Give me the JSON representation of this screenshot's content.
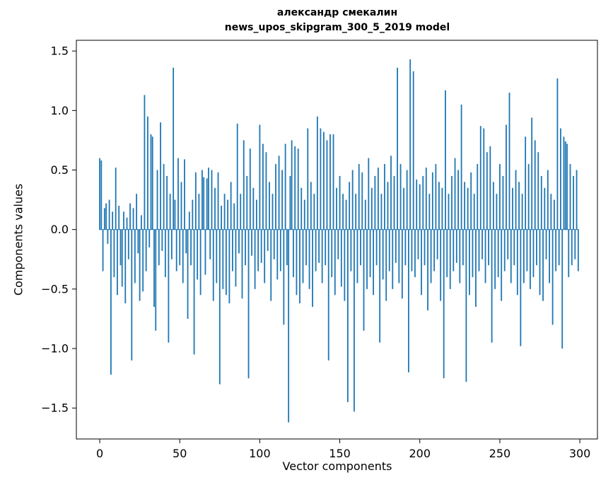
{
  "title_lines": {
    "line1": "александр смекалин",
    "line2": "news_upos_skipgram_300_5_2019 model"
  },
  "chart_data": {
    "type": "bar",
    "title": "александр смекалин\nnews_upos_skipgram_300_5_2019 model",
    "xlabel": "Vector components",
    "ylabel": "Components values",
    "xlim": [
      -14.6,
      311.0
    ],
    "ylim": [
      -1.76,
      1.59
    ],
    "xticks": [
      0,
      50,
      100,
      150,
      200,
      250,
      300
    ],
    "yticks": [
      -1.5,
      -1.0,
      -0.5,
      0.0,
      0.5,
      1.0,
      1.5
    ],
    "bar_color": "#1f77b4",
    "bar_width": 0.8,
    "grid": false,
    "legend": "none",
    "values": [
      0.6,
      0.58,
      -0.35,
      0.18,
      0.22,
      -0.12,
      0.25,
      -1.22,
      0.15,
      -0.4,
      0.52,
      -0.55,
      0.2,
      -0.3,
      -0.48,
      0.15,
      -0.62,
      0.1,
      -0.25,
      0.22,
      -1.1,
      0.18,
      -0.45,
      0.3,
      -0.2,
      -0.6,
      0.12,
      -0.52,
      1.13,
      -0.35,
      0.95,
      -0.15,
      0.8,
      0.78,
      -0.65,
      -0.85,
      0.5,
      -0.3,
      0.9,
      -0.18,
      0.55,
      -0.4,
      0.45,
      -0.95,
      0.3,
      -0.25,
      1.36,
      0.25,
      -0.35,
      0.6,
      -0.3,
      0.4,
      -0.45,
      0.59,
      -0.2,
      -0.75,
      0.15,
      -0.3,
      0.25,
      -1.05,
      0.48,
      -0.42,
      0.3,
      -0.55,
      0.5,
      0.44,
      -0.38,
      0.43,
      0.52,
      -0.25,
      0.5,
      -0.6,
      0.35,
      -0.45,
      0.48,
      -1.3,
      0.2,
      -0.5,
      0.3,
      -0.55,
      0.25,
      -0.62,
      0.4,
      -0.35,
      0.22,
      -0.48,
      0.89,
      -0.2,
      0.3,
      -0.58,
      0.75,
      -0.3,
      0.45,
      -1.25,
      0.68,
      -0.22,
      0.35,
      -0.5,
      0.25,
      -0.35,
      0.88,
      -0.28,
      0.72,
      -0.45,
      0.65,
      -0.18,
      0.4,
      -0.6,
      0.3,
      -0.25,
      0.55,
      -0.42,
      0.62,
      -0.35,
      0.5,
      -0.8,
      0.72,
      -0.3,
      -1.62,
      0.45,
      0.75,
      -0.4,
      0.7,
      -0.55,
      0.68,
      -0.62,
      0.35,
      -0.45,
      0.25,
      -0.3,
      0.85,
      -0.5,
      0.4,
      -0.65,
      0.3,
      -0.35,
      0.95,
      -0.28,
      0.85,
      -0.45,
      0.82,
      -0.3,
      0.75,
      -1.1,
      0.8,
      -0.4,
      0.8,
      -0.55,
      0.35,
      -0.25,
      0.45,
      -0.48,
      0.3,
      -0.6,
      0.25,
      -1.45,
      0.4,
      -0.35,
      0.5,
      -1.53,
      0.3,
      -0.45,
      0.55,
      -0.3,
      0.48,
      -0.85,
      0.25,
      -0.5,
      0.6,
      -0.4,
      0.35,
      -0.55,
      0.45,
      -0.3,
      0.52,
      -0.95,
      0.3,
      -0.42,
      0.55,
      -0.6,
      0.4,
      -0.35,
      0.62,
      -0.5,
      0.45,
      -0.28,
      1.36,
      -0.45,
      0.55,
      -0.58,
      0.35,
      -0.3,
      0.5,
      -1.2,
      1.43,
      -0.35,
      1.33,
      -0.4,
      0.42,
      -0.25,
      0.38,
      -0.55,
      0.45,
      -0.3,
      0.52,
      -0.68,
      0.3,
      -0.45,
      0.48,
      -0.35,
      0.55,
      -0.25,
      0.4,
      -0.6,
      0.35,
      -1.25,
      1.17,
      -0.4,
      0.3,
      -0.5,
      0.45,
      -0.35,
      0.6,
      -0.28,
      0.5,
      -0.45,
      1.05,
      -0.3,
      0.4,
      -1.28,
      0.35,
      -0.55,
      0.48,
      -0.4,
      0.3,
      -0.65,
      0.55,
      -0.35,
      0.87,
      -0.25,
      0.85,
      -0.45,
      0.65,
      -0.3,
      0.7,
      -0.95,
      0.4,
      -0.5,
      0.3,
      -0.4,
      0.55,
      -0.6,
      0.45,
      -0.35,
      0.88,
      -0.25,
      1.15,
      -0.45,
      0.35,
      -0.3,
      0.5,
      -0.55,
      0.4,
      -0.98,
      0.3,
      -0.45,
      0.78,
      -0.35,
      0.55,
      -0.5,
      0.94,
      -0.4,
      0.75,
      -0.3,
      0.65,
      -0.55,
      0.45,
      -0.6,
      0.35,
      -0.25,
      0.5,
      -0.45,
      0.3,
      -0.8,
      0.25,
      -0.35,
      1.27,
      -0.3,
      0.85,
      -1.0,
      0.78,
      0.74,
      0.72,
      -0.4,
      0.55,
      -0.3,
      0.45,
      -0.25,
      0.5,
      -0.35
    ]
  }
}
